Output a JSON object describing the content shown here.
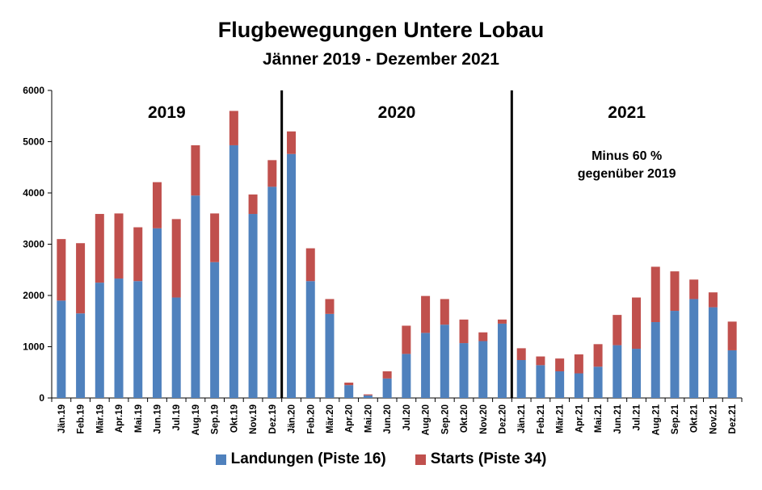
{
  "chart_data": {
    "type": "bar",
    "stacked": true,
    "title": "Flugbewegungen Untere Lobau",
    "subtitle": "Jänner 2019 - Dezember 2021",
    "categories": [
      "Jän.19",
      "Feb.19",
      "Mär.19",
      "Apr.19",
      "Mai.19",
      "Jun.19",
      "Jul.19",
      "Aug.19",
      "Sep.19",
      "Okt.19",
      "Nov.19",
      "Dez.19",
      "Jän.20",
      "Feb.20",
      "Mär.20",
      "Apr.20",
      "Mai.20",
      "Jun.20",
      "Jul.20",
      "Aug.20",
      "Sep.20",
      "Okt.20",
      "Nov.20",
      "Dez.20",
      "Jän.21",
      "Feb.21",
      "Mär.21",
      "Apr.21",
      "Mai.21",
      "Jun.21",
      "Jul.21",
      "Aug.21",
      "Sep.21",
      "Okt.21",
      "Nov.21",
      "Dez.21"
    ],
    "series": [
      {
        "name": "Landungen (Piste 16)",
        "color": "#4f81bd",
        "values": [
          1900,
          1650,
          2250,
          2330,
          2280,
          3310,
          1960,
          3950,
          2650,
          4930,
          3590,
          4120,
          4760,
          2280,
          1640,
          250,
          50,
          380,
          860,
          1270,
          1430,
          1070,
          1110,
          1450,
          740,
          640,
          520,
          480,
          610,
          1030,
          960,
          1480,
          1700,
          1930,
          1770,
          930
        ]
      },
      {
        "name": "Starts (Piste 34)",
        "color": "#c0504d",
        "values": [
          1200,
          1370,
          1340,
          1270,
          1050,
          900,
          1530,
          980,
          950,
          670,
          380,
          520,
          440,
          640,
          290,
          50,
          20,
          140,
          550,
          720,
          500,
          460,
          170,
          80,
          230,
          170,
          250,
          370,
          440,
          590,
          1000,
          1080,
          770,
          380,
          290,
          560
        ]
      }
    ],
    "ylim": [
      0,
      6000
    ],
    "yticks": [
      "0",
      "1000",
      "2000",
      "3000",
      "4000",
      "5000",
      "6000"
    ],
    "grid": false,
    "legend": "bottom",
    "year_labels": [
      "2019",
      "2020",
      "2021"
    ],
    "annotation": [
      "Minus 60 %",
      "gegenüber 2019"
    ]
  }
}
